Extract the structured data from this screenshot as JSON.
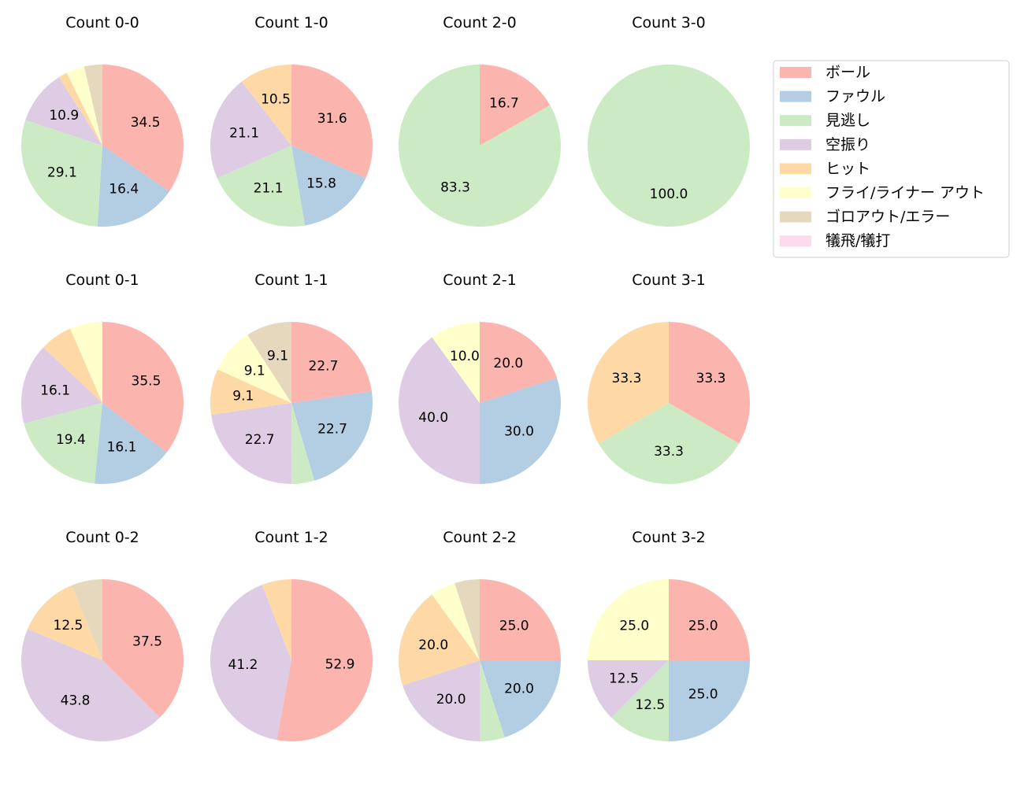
{
  "chart_data": {
    "type": "pie",
    "start_angle_deg": 90,
    "direction": "clockwise",
    "legend_position": "right",
    "categories": [
      "ボール",
      "ファウル",
      "見逃し",
      "空振り",
      "ヒット",
      "フライ/ライナー アウト",
      "ゴロアウト/エラー",
      "犠飛/犠打"
    ],
    "colors": [
      "#fbb4ae",
      "#b3cde3",
      "#ccebc5",
      "#decbe4",
      "#fed9a6",
      "#ffffcc",
      "#e5d8bd",
      "#fddaec"
    ],
    "charts": [
      {
        "title": "Count 0-0",
        "values": [
          34.5,
          16.4,
          29.1,
          10.9,
          1.8,
          3.6,
          3.6,
          0
        ]
      },
      {
        "title": "Count 1-0",
        "values": [
          31.6,
          15.8,
          21.1,
          21.1,
          10.5,
          0,
          0,
          0
        ]
      },
      {
        "title": "Count 2-0",
        "values": [
          16.7,
          0,
          83.3,
          0,
          0,
          0,
          0,
          0
        ]
      },
      {
        "title": "Count 3-0",
        "values": [
          0,
          0,
          100.0,
          0,
          0,
          0,
          0,
          0
        ]
      },
      {
        "title": "Count 0-1",
        "values": [
          35.5,
          16.1,
          19.4,
          16.1,
          6.5,
          6.5,
          0,
          0
        ]
      },
      {
        "title": "Count 1-1",
        "values": [
          22.7,
          22.7,
          4.5,
          22.7,
          9.1,
          9.1,
          9.1,
          0
        ]
      },
      {
        "title": "Count 2-1",
        "values": [
          20.0,
          30.0,
          0,
          40.0,
          0,
          10.0,
          0,
          0
        ]
      },
      {
        "title": "Count 3-1",
        "values": [
          33.3,
          0,
          33.3,
          0,
          33.3,
          0,
          0,
          0
        ]
      },
      {
        "title": "Count 0-2",
        "values": [
          37.5,
          0,
          0,
          43.8,
          12.5,
          0,
          6.2,
          0
        ]
      },
      {
        "title": "Count 1-2",
        "values": [
          52.9,
          0,
          0,
          41.2,
          5.9,
          0,
          0,
          0
        ]
      },
      {
        "title": "Count 2-2",
        "values": [
          25.0,
          20.0,
          5.0,
          20.0,
          20.0,
          5.0,
          5.0,
          0
        ]
      },
      {
        "title": "Count 3-2",
        "values": [
          25.0,
          25.0,
          12.5,
          12.5,
          0,
          25.0,
          0,
          0
        ]
      }
    ]
  }
}
